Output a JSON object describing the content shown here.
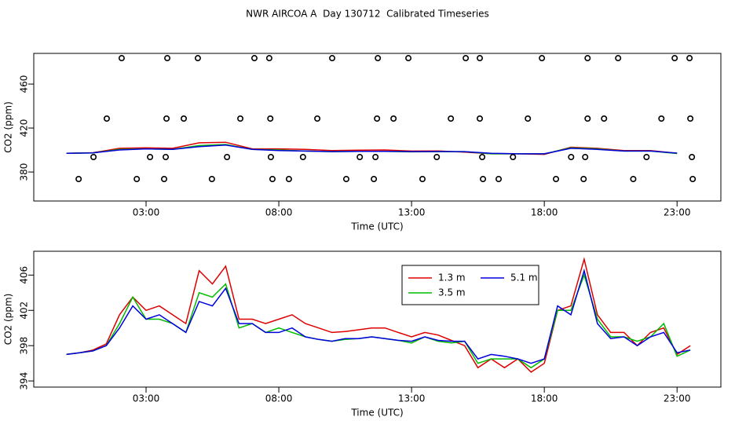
{
  "chart_data": [
    {
      "type": "line",
      "title": "NWR AIRCOA A  Day 130712  Calibrated Timeseries",
      "x_label": "Time (UTC)",
      "y_label": "CO2 (ppm)",
      "x": [
        0,
        1,
        2,
        3,
        4,
        5,
        6,
        7,
        8,
        9,
        10,
        11,
        12,
        13,
        14,
        15,
        16,
        17,
        18,
        19,
        20,
        21,
        22,
        23
      ],
      "series": [
        {
          "color": "#dd0000",
          "values": [
            397,
            397.5,
            401.5,
            402,
            401.5,
            406.5,
            407,
            401,
            401,
            400.5,
            399.5,
            399.8,
            400,
            399,
            399.2,
            398,
            396.5,
            396.5,
            396,
            402.5,
            401.5,
            399.5,
            399.5,
            397
          ]
        },
        {
          "color": "#00bb00",
          "values": [
            397,
            397.4,
            400.5,
            401,
            400.5,
            404,
            405,
            400.5,
            400,
            399,
            398.5,
            398.8,
            398.8,
            398.3,
            398.5,
            398.5,
            396.5,
            396.5,
            396.5,
            402,
            401,
            399,
            399,
            396.8
          ]
        },
        {
          "color": "#0000dd",
          "values": [
            397,
            397.4,
            400,
            401,
            400.5,
            403,
            404.5,
            400.5,
            399.5,
            399,
            398.5,
            398.8,
            398.8,
            398.5,
            398.6,
            398.5,
            397,
            396.5,
            396.5,
            401.5,
            400.5,
            399,
            399,
            397.2
          ]
        },
        {
          "type": "scatter",
          "color": "#000000",
          "x": [
            2.08,
            3.8,
            4.95,
            7.08,
            7.64,
            10.01,
            11.73,
            12.88,
            15.04,
            15.57,
            17.91,
            19.63,
            20.78,
            22.91,
            23.47,
            1.52,
            3.77,
            4.42,
            6.55,
            7.68,
            9.45,
            11.7,
            12.32,
            14.48,
            15.57,
            17.38,
            19.63,
            20.25,
            22.41,
            23.5,
            1.02,
            3.15,
            3.74,
            6.05,
            7.7,
            8.91,
            11.05,
            11.64,
            13.95,
            15.66,
            16.82,
            19.01,
            19.54,
            21.85,
            23.56,
            0.46,
            2.65,
            3.68,
            5.48,
            7.76,
            8.38,
            10.54,
            11.58,
            13.41,
            15.69,
            16.28,
            18.44,
            19.48,
            21.35,
            23.59
          ],
          "values": [
            483.6,
            483.6,
            483.6,
            483.6,
            483.6,
            483.6,
            483.6,
            483.6,
            483.6,
            483.6,
            483.6,
            483.6,
            483.6,
            483.6,
            483.6,
            428.6,
            428.6,
            428.6,
            428.6,
            428.6,
            428.6,
            428.6,
            428.6,
            428.6,
            428.6,
            428.6,
            428.6,
            428.6,
            428.6,
            428.6,
            393.6,
            393.6,
            393.6,
            393.6,
            393.6,
            393.6,
            393.6,
            393.6,
            393.6,
            393.6,
            393.6,
            393.6,
            393.6,
            393.6,
            393.6,
            373.6,
            373.6,
            373.6,
            373.6,
            373.6,
            373.6,
            373.6,
            373.6,
            373.6,
            373.6,
            373.6,
            373.6,
            373.6,
            373.6,
            373.6
          ]
        }
      ],
      "xlim": [
        -1.23,
        24.65
      ],
      "ylim": [
        353.6,
        487.9
      ],
      "xticks": [
        {
          "value": 3,
          "label": "03:00"
        },
        {
          "value": 8,
          "label": "08:00"
        },
        {
          "value": 13,
          "label": "13:00"
        },
        {
          "value": 18,
          "label": "18:00"
        },
        {
          "value": 23,
          "label": "23:00"
        }
      ],
      "yticks": [
        380,
        420,
        460
      ]
    },
    {
      "type": "line",
      "x_label": "Time (UTC)",
      "y_label": "CO2 (ppm)",
      "legend": "top",
      "x": [
        0,
        0.5,
        1,
        1.5,
        2,
        2.5,
        3,
        3.5,
        4,
        4.5,
        5,
        5.5,
        6,
        6.5,
        7,
        7.5,
        8,
        8.5,
        9,
        9.5,
        10,
        10.5,
        11,
        11.5,
        12,
        12.5,
        13,
        13.5,
        14,
        14.5,
        15,
        15.5,
        16,
        16.5,
        17,
        17.5,
        18,
        18.5,
        19,
        19.5,
        20,
        20.5,
        21,
        21.5,
        22,
        22.5,
        23,
        23.5
      ],
      "series": [
        {
          "name": "1.3 m",
          "color": "#dd0000",
          "values": [
            397,
            397.2,
            397.5,
            398.2,
            401.5,
            403.5,
            402,
            402.5,
            401.5,
            400.5,
            406.5,
            405,
            407,
            401,
            401,
            400.5,
            401,
            401.5,
            400.5,
            400,
            399.5,
            399.6,
            399.8,
            400,
            400,
            399.5,
            399,
            399.5,
            399.2,
            398.6,
            398,
            395.5,
            396.5,
            395.5,
            396.5,
            395,
            396,
            402,
            402.5,
            407.8,
            401.5,
            399.5,
            399.5,
            398,
            399.5,
            400,
            397,
            398
          ]
        },
        {
          "name": "3.5 m",
          "color": "#00bb00",
          "values": [
            397,
            397.2,
            397.4,
            398,
            400.5,
            403.5,
            401,
            401,
            400.5,
            399.5,
            404,
            403.5,
            405,
            400,
            400.5,
            399.5,
            400,
            399.5,
            399,
            398.7,
            398.5,
            398.7,
            398.8,
            399,
            398.8,
            398.6,
            398.3,
            399,
            398.5,
            398.3,
            398.5,
            396,
            396.5,
            396.5,
            396.5,
            395.5,
            396.5,
            402,
            402,
            406,
            401,
            399,
            399,
            398.5,
            399,
            400.5,
            396.8,
            397.5
          ]
        },
        {
          "name": "5.1 m",
          "color": "#0000dd",
          "values": [
            397,
            397.2,
            397.4,
            398,
            400,
            402.5,
            401,
            401.5,
            400.5,
            399.5,
            403,
            402.5,
            404.5,
            400.5,
            400.5,
            399.5,
            399.5,
            400,
            399,
            398.7,
            398.5,
            398.8,
            398.8,
            399,
            398.8,
            398.6,
            398.5,
            399,
            398.6,
            398.5,
            398.5,
            396.5,
            397,
            396.8,
            396.5,
            396,
            396.5,
            402.5,
            401.5,
            406.5,
            400.5,
            398.8,
            399,
            398,
            399,
            399.5,
            397.2,
            397.5
          ]
        }
      ],
      "xlim": [
        -1.23,
        24.65
      ],
      "ylim": [
        393.3,
        408.7
      ],
      "xticks": [
        {
          "value": 3,
          "label": "03:00"
        },
        {
          "value": 8,
          "label": "08:00"
        },
        {
          "value": 13,
          "label": "13:00"
        },
        {
          "value": 18,
          "label": "18:00"
        },
        {
          "value": 23,
          "label": "23:00"
        }
      ],
      "yticks": [
        394,
        398,
        402,
        406
      ]
    }
  ]
}
